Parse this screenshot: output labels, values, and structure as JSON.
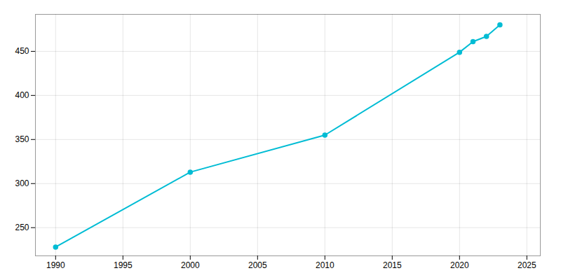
{
  "chart_data": {
    "type": "line",
    "x": [
      1990,
      2000,
      2010,
      2020,
      2021,
      2022,
      2023
    ],
    "values": [
      228,
      313,
      355,
      449,
      461,
      467,
      480
    ],
    "color": "#00bcd4",
    "marker": "circle",
    "xlim": [
      1988.5,
      2026
    ],
    "ylim": [
      218,
      492
    ],
    "xticks": [
      1990,
      1995,
      2000,
      2005,
      2010,
      2015,
      2020,
      2025
    ],
    "yticks": [
      250,
      300,
      350,
      400,
      450
    ],
    "grid": true
  }
}
